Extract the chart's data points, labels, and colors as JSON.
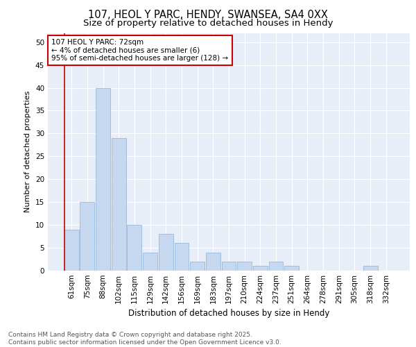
{
  "title1": "107, HEOL Y PARC, HENDY, SWANSEA, SA4 0XX",
  "title2": "Size of property relative to detached houses in Hendy",
  "xlabel": "Distribution of detached houses by size in Hendy",
  "ylabel": "Number of detached properties",
  "categories": [
    "61sqm",
    "75sqm",
    "88sqm",
    "102sqm",
    "115sqm",
    "129sqm",
    "142sqm",
    "156sqm",
    "169sqm",
    "183sqm",
    "197sqm",
    "210sqm",
    "224sqm",
    "237sqm",
    "251sqm",
    "264sqm",
    "278sqm",
    "291sqm",
    "305sqm",
    "318sqm",
    "332sqm"
  ],
  "values": [
    9,
    15,
    40,
    29,
    10,
    4,
    8,
    6,
    2,
    4,
    2,
    2,
    1,
    2,
    1,
    0,
    0,
    0,
    0,
    1,
    0
  ],
  "bar_color": "#c5d8f0",
  "bar_edge_color": "#8ab0d8",
  "annotation_text": "107 HEOL Y PARC: 72sqm\n← 4% of detached houses are smaller (6)\n95% of semi-detached houses are larger (128) →",
  "annotation_box_edge_color": "#cc0000",
  "red_line_color": "#cc0000",
  "ylim": [
    0,
    52
  ],
  "yticks": [
    0,
    5,
    10,
    15,
    20,
    25,
    30,
    35,
    40,
    45,
    50
  ],
  "fig_bg_color": "#ffffff",
  "plot_bg_color": "#e8eef8",
  "grid_color": "#ffffff",
  "footer_text": "Contains HM Land Registry data © Crown copyright and database right 2025.\nContains public sector information licensed under the Open Government Licence v3.0.",
  "title1_fontsize": 10.5,
  "title2_fontsize": 9.5,
  "ylabel_fontsize": 8,
  "xlabel_fontsize": 8.5,
  "tick_fontsize": 7.5,
  "annotation_fontsize": 7.5,
  "footer_fontsize": 6.5
}
